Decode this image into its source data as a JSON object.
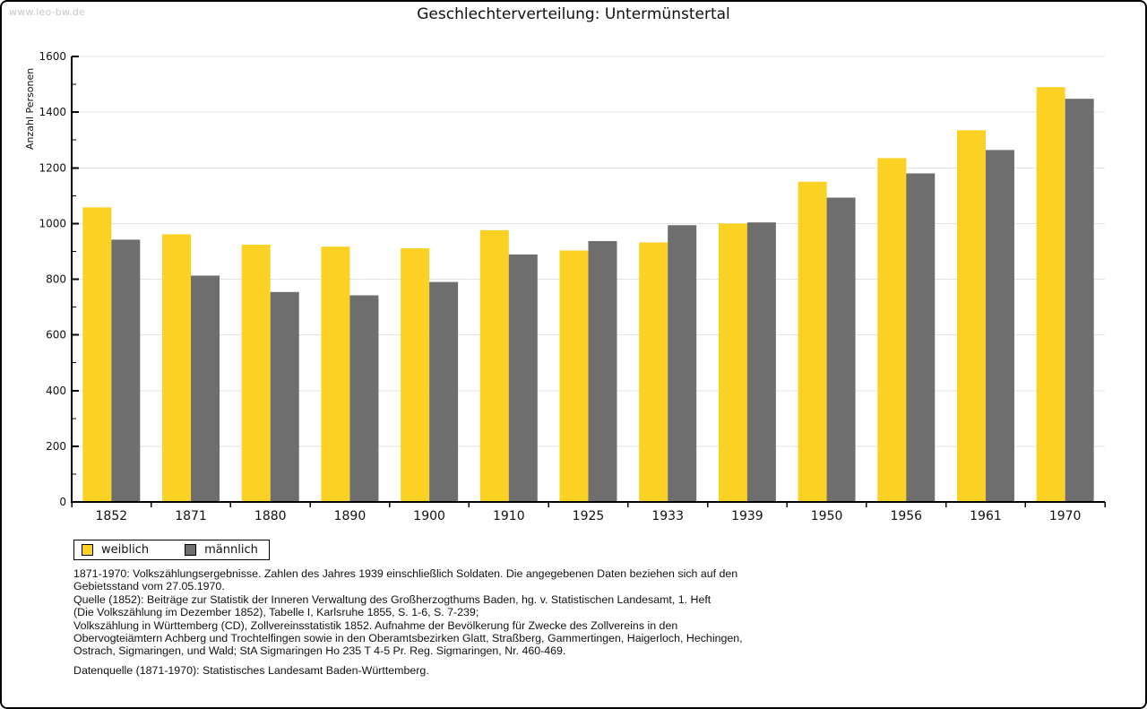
{
  "watermark": "www.leo-bw.de",
  "chart_data": {
    "type": "bar",
    "title": "Geschlechterverteilung: Untermünstertal",
    "ylabel": "Anzahl Personen",
    "xlabel": "",
    "categories": [
      "1852",
      "1871",
      "1880",
      "1890",
      "1900",
      "1910",
      "1925",
      "1933",
      "1939",
      "1950",
      "1956",
      "1961",
      "1970"
    ],
    "series": [
      {
        "name": "weiblich",
        "color": "#FBD123",
        "values": [
          1058,
          961,
          924,
          917,
          911,
          976,
          903,
          932,
          1000,
          1150,
          1235,
          1335,
          1490
        ]
      },
      {
        "name": "männlich",
        "color": "#6E6E6E",
        "values": [
          942,
          813,
          754,
          742,
          790,
          889,
          937,
          994,
          1004,
          1093,
          1180,
          1264,
          1448
        ]
      }
    ],
    "ylim": [
      0,
      1600
    ],
    "ytick_step": 200,
    "ytick_minor_step": 100,
    "grid": true,
    "gridline_color": "#e3e3e3",
    "axis_color": "#000000",
    "legend_position": "bottom-left"
  },
  "footer": {
    "lines": [
      "1871-1970: Volkszählungsergebnisse. Zahlen des Jahres 1939 einschließlich Soldaten. Die angegebenen Daten beziehen sich auf den",
      "Gebietsstand vom 27.05.1970.",
      "Quelle (1852): Beiträge zur Statistik der Inneren Verwaltung des Großherzogthums Baden, hg. v. Statistischen Landesamt, 1. Heft",
      "(Die Volkszählung im Dezember 1852), Tabelle I, Karlsruhe 1855, S. 1-6, S. 7-239;",
      "Volkszählung in Württemberg (CD), Zollvereinsstatistik 1852. Aufnahme der Bevölkerung für Zwecke des Zollvereins in den",
      "Obervogteiämtern Achberg und Trochtelfingen sowie in den Oberamtsbezirken Glatt, Straßberg, Gammertingen, Haigerloch, Hechingen,",
      "Ostrach, Sigmaringen, und Wald; StA Sigmaringen Ho 235 T 4-5 Pr. Reg. Sigmaringen, Nr. 460-469."
    ],
    "source": "Datenquelle (1871-1970): Statistisches Landesamt Baden-Württemberg."
  }
}
